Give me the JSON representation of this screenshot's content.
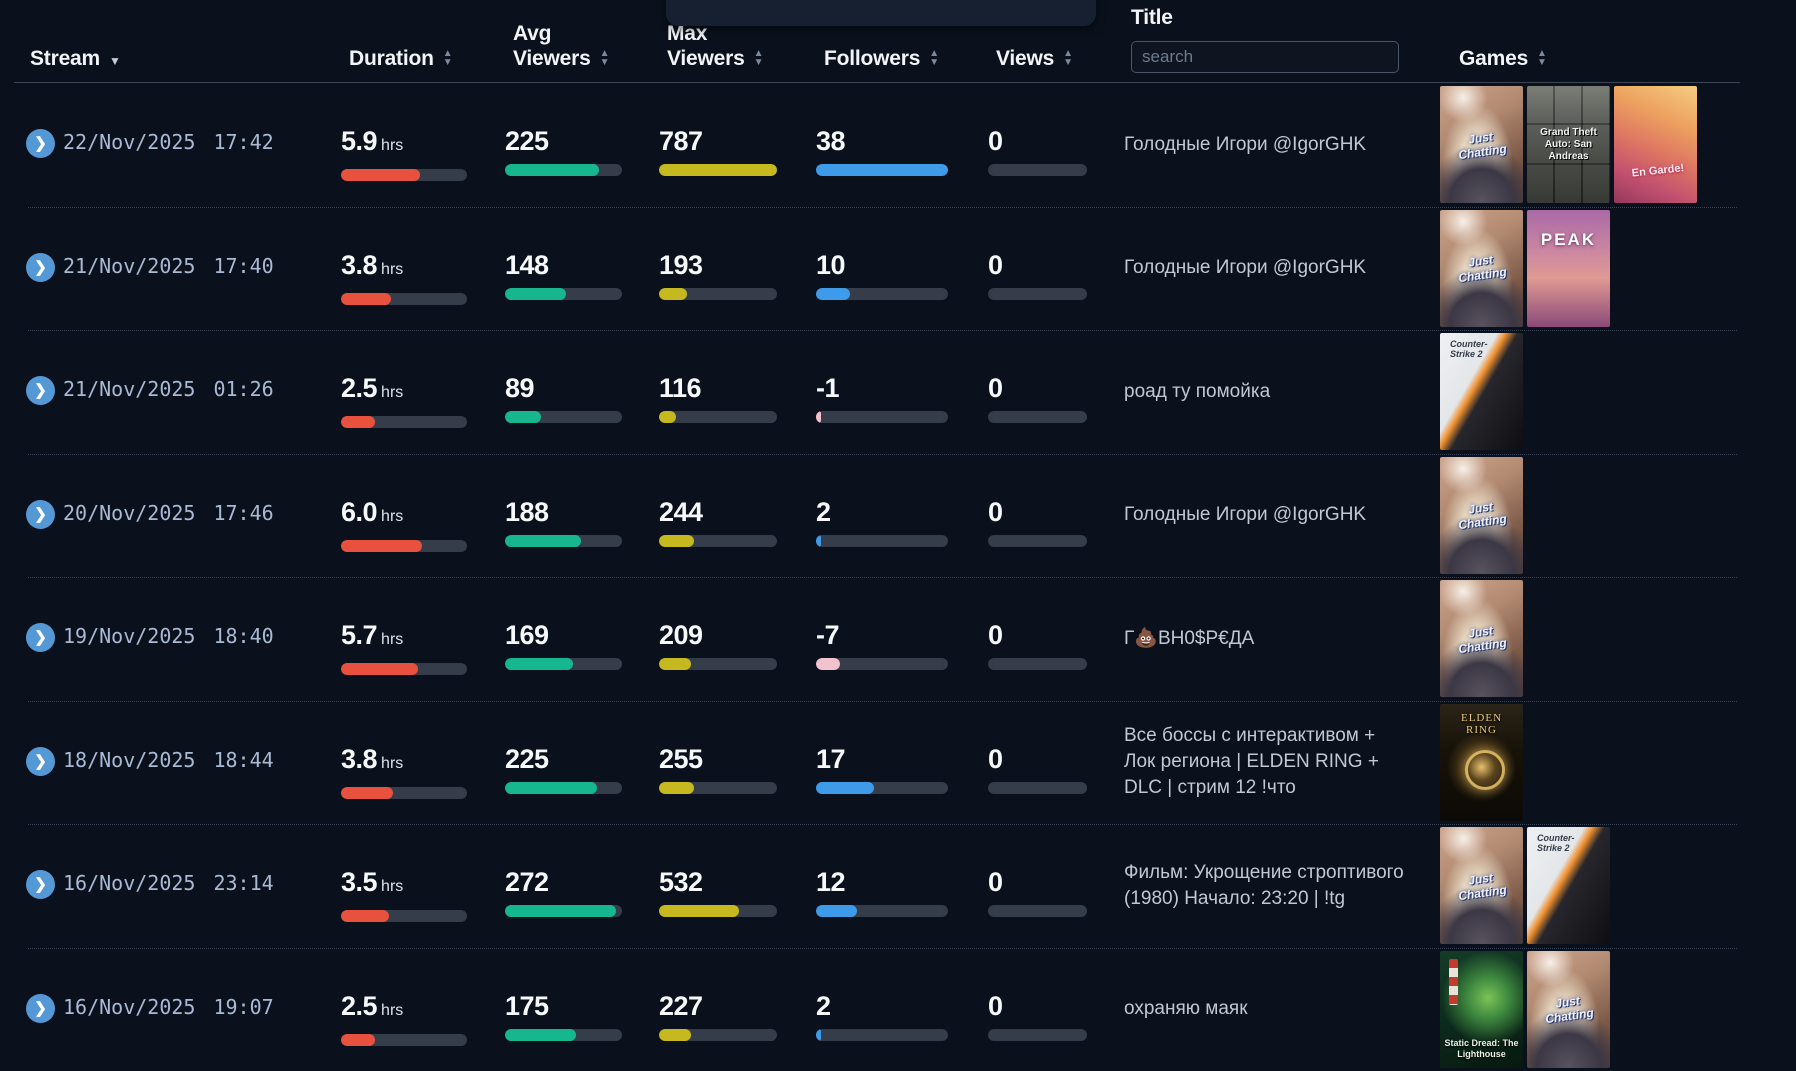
{
  "columns": {
    "stream": "Stream",
    "duration": "Duration",
    "avg_viewers": {
      "line1": "Avg",
      "line2": "Viewers"
    },
    "max_viewers": {
      "line1": "Max",
      "line2": "Viewers"
    },
    "followers": "Followers",
    "views": "Views",
    "title": "Title",
    "games": "Games"
  },
  "search": {
    "placeholder": "search",
    "value": ""
  },
  "bar_colors": {
    "duration": "#e8513e",
    "avg_viewers": "#16b78e",
    "max_viewers": "#c6b91f",
    "followers_positive": "#3d9be9",
    "followers_negative": "#f4c2cd",
    "track": "#343d49"
  },
  "rows": [
    {
      "date": "22/Nov/2025",
      "time": "17:42",
      "duration": "5.9",
      "duration_unit": "hrs",
      "avg_viewers": "225",
      "max_viewers": "787",
      "followers": "38",
      "views": "0",
      "title": "Голодные Игори @IgorGHK",
      "bars": {
        "duration": {
          "pct": 63,
          "color": "#e8513e"
        },
        "avg": {
          "pct": 80,
          "color": "#16b78e"
        },
        "max": {
          "pct": 100,
          "color": "#c6b91f"
        },
        "followers": {
          "pct": 100,
          "color": "#3d9be9"
        },
        "views": {
          "pct": 0,
          "color": "#3d9be9"
        }
      },
      "games": [
        {
          "id": "just-chatting",
          "label": "Just Chatting"
        },
        {
          "id": "gta-san-andreas",
          "label": "Grand Theft Auto: San Andreas"
        },
        {
          "id": "en-garde",
          "label": "En Garde!"
        }
      ]
    },
    {
      "date": "21/Nov/2025",
      "time": "17:40",
      "duration": "3.8",
      "duration_unit": "hrs",
      "avg_viewers": "148",
      "max_viewers": "193",
      "followers": "10",
      "views": "0",
      "title": "Голодные Игори @IgorGHK",
      "bars": {
        "duration": {
          "pct": 40,
          "color": "#e8513e"
        },
        "avg": {
          "pct": 52,
          "color": "#16b78e"
        },
        "max": {
          "pct": 24,
          "color": "#c6b91f"
        },
        "followers": {
          "pct": 26,
          "color": "#3d9be9"
        },
        "views": {
          "pct": 0,
          "color": "#3d9be9"
        }
      },
      "games": [
        {
          "id": "just-chatting",
          "label": "Just Chatting"
        },
        {
          "id": "peak",
          "label": "PEAK"
        }
      ]
    },
    {
      "date": "21/Nov/2025",
      "time": "01:26",
      "duration": "2.5",
      "duration_unit": "hrs",
      "avg_viewers": "89",
      "max_viewers": "116",
      "followers": "-1",
      "views": "0",
      "title": "роад ту помойка",
      "bars": {
        "duration": {
          "pct": 27,
          "color": "#e8513e"
        },
        "avg": {
          "pct": 31,
          "color": "#16b78e"
        },
        "max": {
          "pct": 14,
          "color": "#c6b91f"
        },
        "followers": {
          "pct": 4,
          "color": "#f4c2cd"
        },
        "views": {
          "pct": 0,
          "color": "#3d9be9"
        }
      },
      "games": [
        {
          "id": "counter-strike-2",
          "label": "Counter-Strike 2"
        }
      ]
    },
    {
      "date": "20/Nov/2025",
      "time": "17:46",
      "duration": "6.0",
      "duration_unit": "hrs",
      "avg_viewers": "188",
      "max_viewers": "244",
      "followers": "2",
      "views": "0",
      "title": "Голодные Игори @IgorGHK",
      "bars": {
        "duration": {
          "pct": 64,
          "color": "#e8513e"
        },
        "avg": {
          "pct": 65,
          "color": "#16b78e"
        },
        "max": {
          "pct": 30,
          "color": "#c6b91f"
        },
        "followers": {
          "pct": 4,
          "color": "#3d9be9"
        },
        "views": {
          "pct": 0,
          "color": "#3d9be9"
        }
      },
      "games": [
        {
          "id": "just-chatting",
          "label": "Just Chatting"
        }
      ]
    },
    {
      "date": "19/Nov/2025",
      "time": "18:40",
      "duration": "5.7",
      "duration_unit": "hrs",
      "avg_viewers": "169",
      "max_viewers": "209",
      "followers": "-7",
      "views": "0",
      "title": "Г💩ВН0$Р€ДА",
      "bars": {
        "duration": {
          "pct": 61,
          "color": "#e8513e"
        },
        "avg": {
          "pct": 58,
          "color": "#16b78e"
        },
        "max": {
          "pct": 27,
          "color": "#c6b91f"
        },
        "followers": {
          "pct": 18,
          "color": "#f4c2cd"
        },
        "views": {
          "pct": 0,
          "color": "#3d9be9"
        }
      },
      "games": [
        {
          "id": "just-chatting",
          "label": "Just Chatting"
        }
      ]
    },
    {
      "date": "18/Nov/2025",
      "time": "18:44",
      "duration": "3.8",
      "duration_unit": "hrs",
      "avg_viewers": "225",
      "max_viewers": "255",
      "followers": "17",
      "views": "0",
      "title": "Все боссы с интерактивом + Лок региона | ELDEN RING + DLC | стрим 12 !что",
      "bars": {
        "duration": {
          "pct": 41,
          "color": "#e8513e"
        },
        "avg": {
          "pct": 79,
          "color": "#16b78e"
        },
        "max": {
          "pct": 30,
          "color": "#c6b91f"
        },
        "followers": {
          "pct": 44,
          "color": "#3d9be9"
        },
        "views": {
          "pct": 0,
          "color": "#3d9be9"
        }
      },
      "games": [
        {
          "id": "elden-ring",
          "label": "ELDEN RING"
        }
      ]
    },
    {
      "date": "16/Nov/2025",
      "time": "23:14",
      "duration": "3.5",
      "duration_unit": "hrs",
      "avg_viewers": "272",
      "max_viewers": "532",
      "followers": "12",
      "views": "0",
      "title": "Фильм: Укрощение строптивого (1980) Начало: 23:20 | !tg",
      "bars": {
        "duration": {
          "pct": 38,
          "color": "#e8513e"
        },
        "avg": {
          "pct": 95,
          "color": "#16b78e"
        },
        "max": {
          "pct": 68,
          "color": "#c6b91f"
        },
        "followers": {
          "pct": 31,
          "color": "#3d9be9"
        },
        "views": {
          "pct": 0,
          "color": "#3d9be9"
        }
      },
      "games": [
        {
          "id": "just-chatting",
          "label": "Just Chatting"
        },
        {
          "id": "counter-strike-2",
          "label": "Counter-Strike 2"
        }
      ]
    },
    {
      "date": "16/Nov/2025",
      "time": "19:07",
      "duration": "2.5",
      "duration_unit": "hrs",
      "avg_viewers": "175",
      "max_viewers": "227",
      "followers": "2",
      "views": "0",
      "title": "охраняю маяк",
      "bars": {
        "duration": {
          "pct": 27,
          "color": "#e8513e"
        },
        "avg": {
          "pct": 61,
          "color": "#16b78e"
        },
        "max": {
          "pct": 27,
          "color": "#c6b91f"
        },
        "followers": {
          "pct": 4,
          "color": "#3d9be9"
        },
        "views": {
          "pct": 0,
          "color": "#3d9be9"
        }
      },
      "games": [
        {
          "id": "static-dread",
          "label": "Static Dread: The Lighthouse"
        },
        {
          "id": "just-chatting",
          "label": "Just Chatting"
        }
      ]
    }
  ]
}
